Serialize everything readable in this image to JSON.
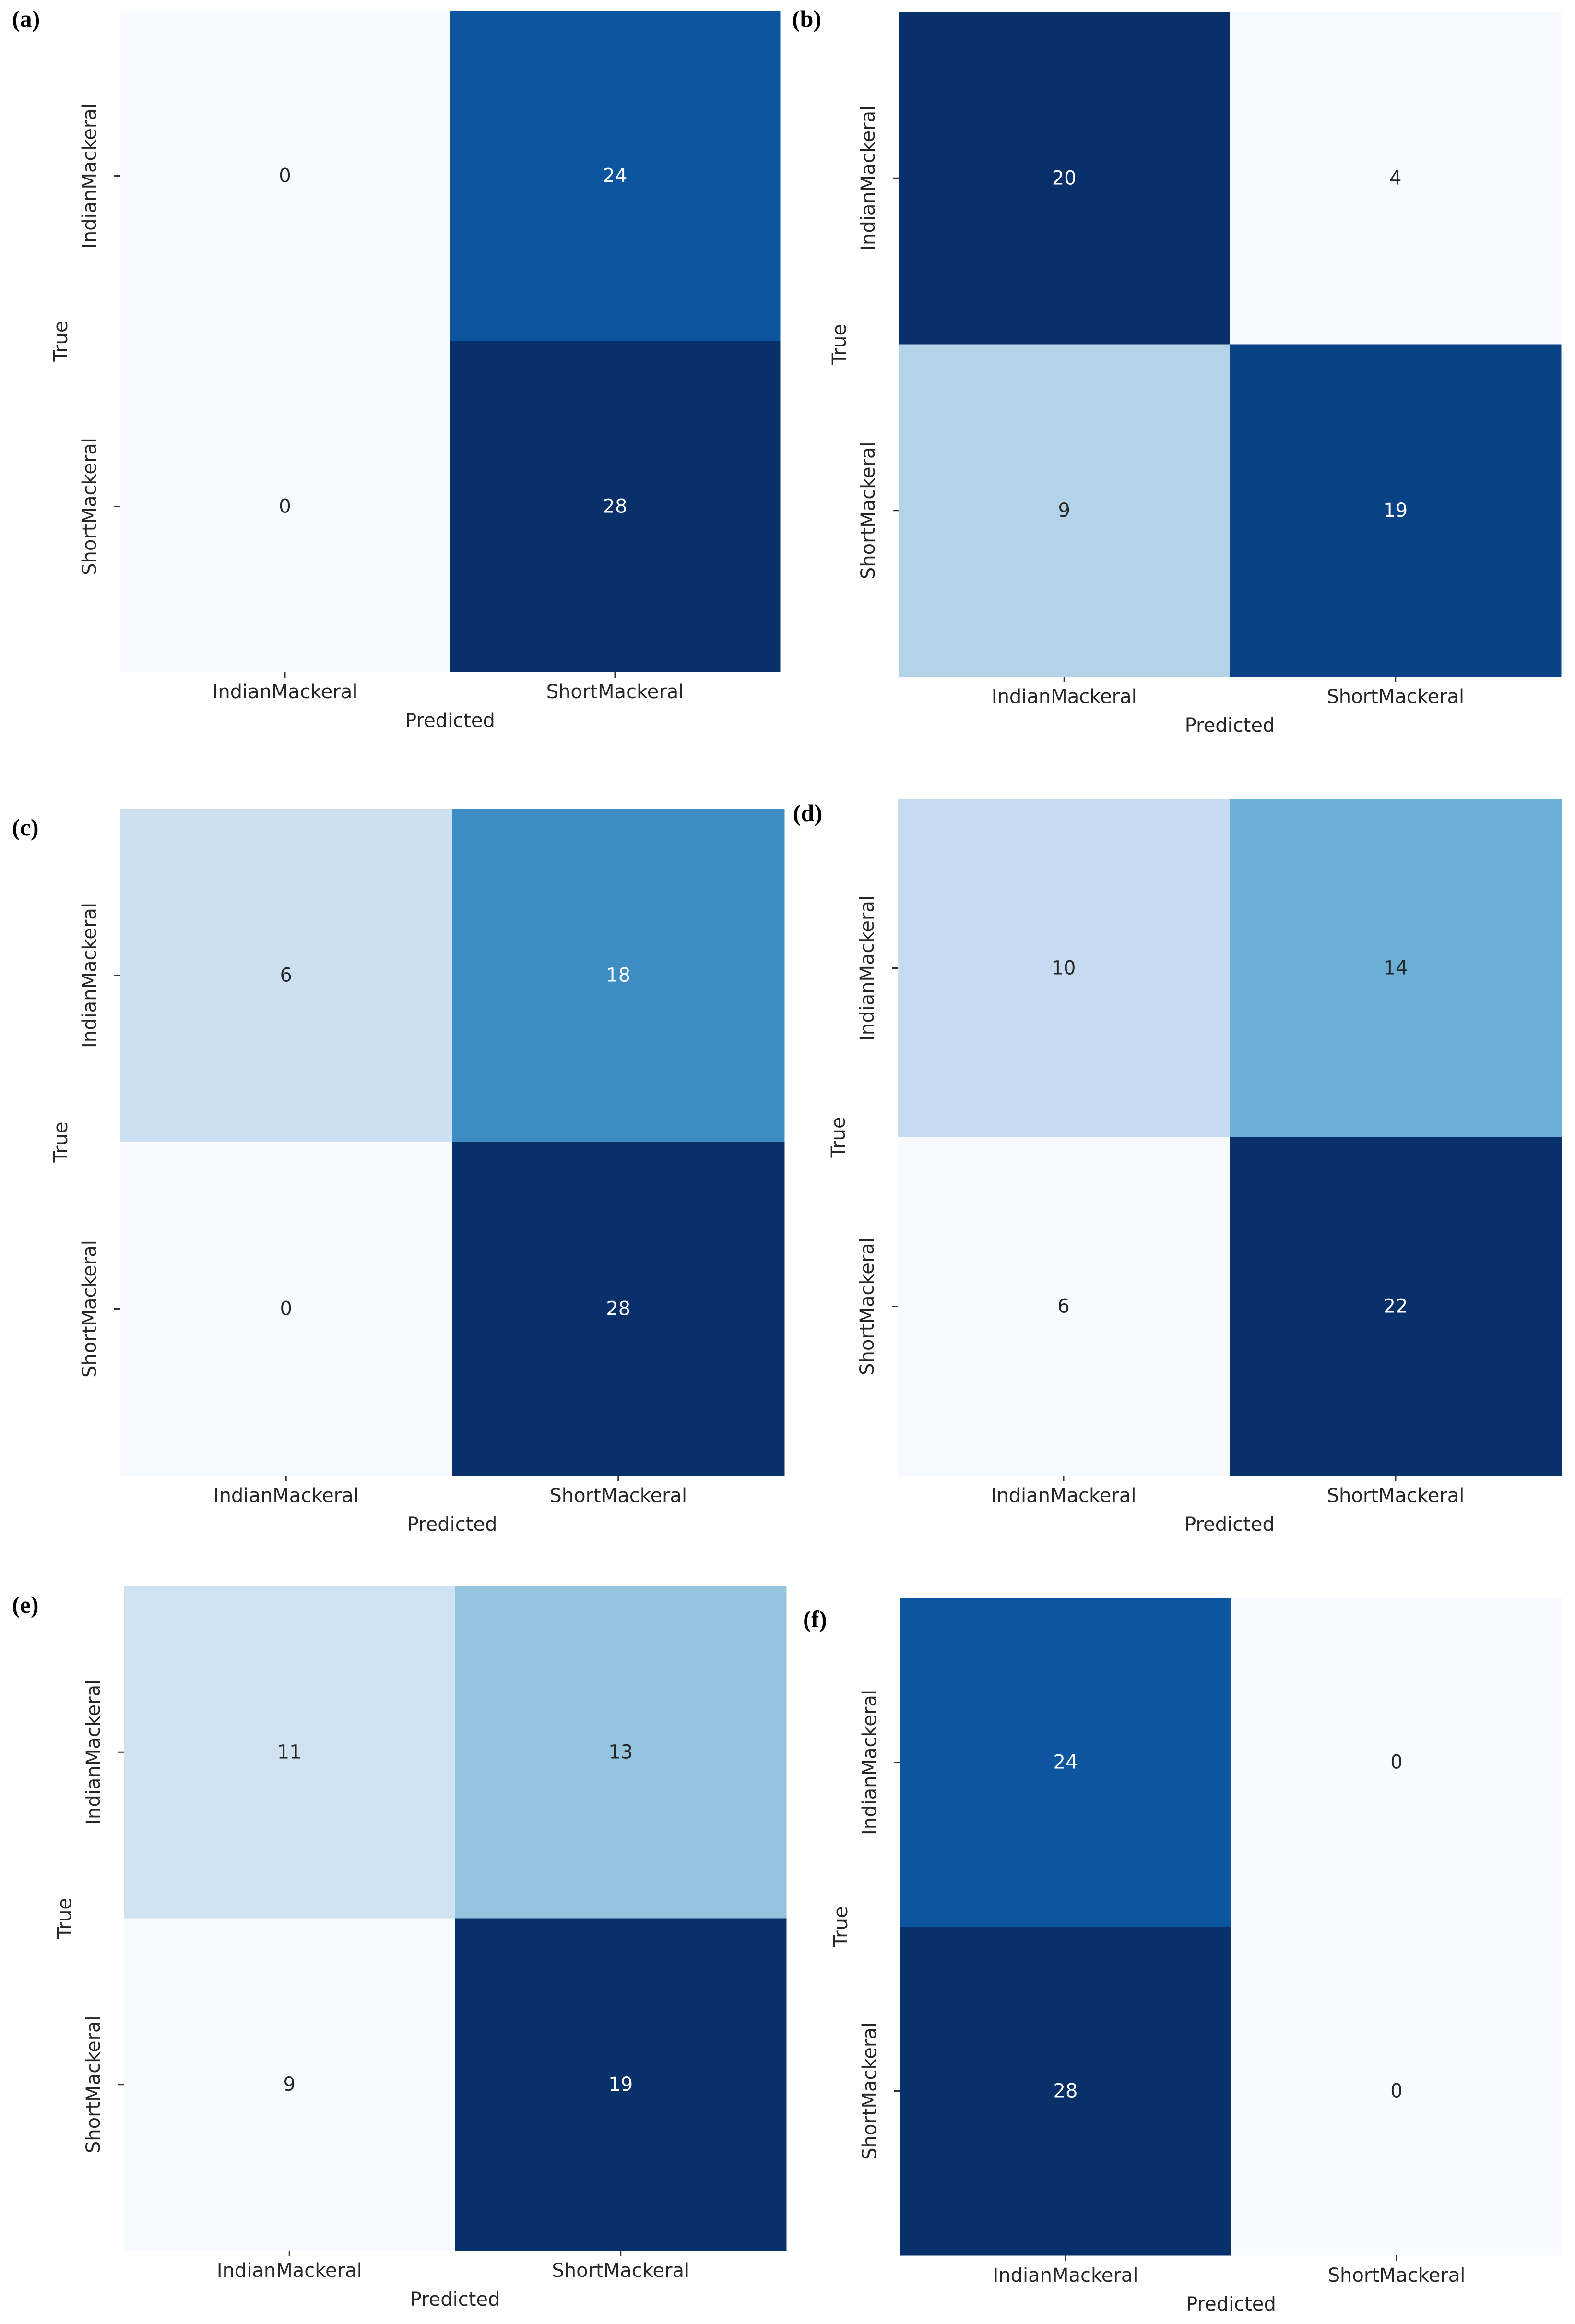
{
  "chart_data": [
    {
      "type": "heatmap",
      "panel_label": "(a)",
      "title": "",
      "xlabel": "Predicted",
      "ylabel": "True",
      "x_categories": [
        "IndianMackeral",
        "ShortMackeral"
      ],
      "y_categories": [
        "IndianMackeral",
        "ShortMackeral"
      ],
      "values": [
        [
          0,
          24
        ],
        [
          0,
          28
        ]
      ],
      "colormap": "Blues",
      "vmin": 0,
      "vmax": 28
    },
    {
      "type": "heatmap",
      "panel_label": "(b)",
      "title": "",
      "xlabel": "Predicted",
      "ylabel": "True",
      "x_categories": [
        "IndianMackeral",
        "ShortMackeral"
      ],
      "y_categories": [
        "IndianMackeral",
        "ShortMackeral"
      ],
      "values": [
        [
          20,
          4
        ],
        [
          9,
          19
        ]
      ],
      "colormap": "Blues",
      "vmin": 4,
      "vmax": 20
    },
    {
      "type": "heatmap",
      "panel_label": "(c)",
      "title": "",
      "xlabel": "Predicted",
      "ylabel": "True",
      "x_categories": [
        "IndianMackeral",
        "ShortMackeral"
      ],
      "y_categories": [
        "IndianMackeral",
        "ShortMackeral"
      ],
      "values": [
        [
          6,
          18
        ],
        [
          0,
          28
        ]
      ],
      "colormap": "Blues",
      "vmin": 0,
      "vmax": 28
    },
    {
      "type": "heatmap",
      "panel_label": "(d)",
      "title": "",
      "xlabel": "Predicted",
      "ylabel": "True",
      "x_categories": [
        "IndianMackeral",
        "ShortMackeral"
      ],
      "y_categories": [
        "IndianMackeral",
        "ShortMackeral"
      ],
      "values": [
        [
          10,
          14
        ],
        [
          6,
          22
        ]
      ],
      "colormap": "Blues",
      "vmin": 6,
      "vmax": 22
    },
    {
      "type": "heatmap",
      "panel_label": "(e)",
      "title": "",
      "xlabel": "Predicted",
      "ylabel": "True",
      "x_categories": [
        "IndianMackeral",
        "ShortMackeral"
      ],
      "y_categories": [
        "IndianMackeral",
        "ShortMackeral"
      ],
      "values": [
        [
          11,
          13
        ],
        [
          9,
          19
        ]
      ],
      "colormap": "Blues",
      "vmin": 9,
      "vmax": 19
    },
    {
      "type": "heatmap",
      "panel_label": "(f)",
      "title": "",
      "xlabel": "Predicted",
      "ylabel": "True",
      "x_categories": [
        "IndianMackeral",
        "ShortMackeral"
      ],
      "y_categories": [
        "IndianMackeral",
        "ShortMackeral"
      ],
      "values": [
        [
          24,
          0
        ],
        [
          28,
          0
        ]
      ],
      "colormap": "Blues",
      "vmin": 0,
      "vmax": 28
    }
  ]
}
